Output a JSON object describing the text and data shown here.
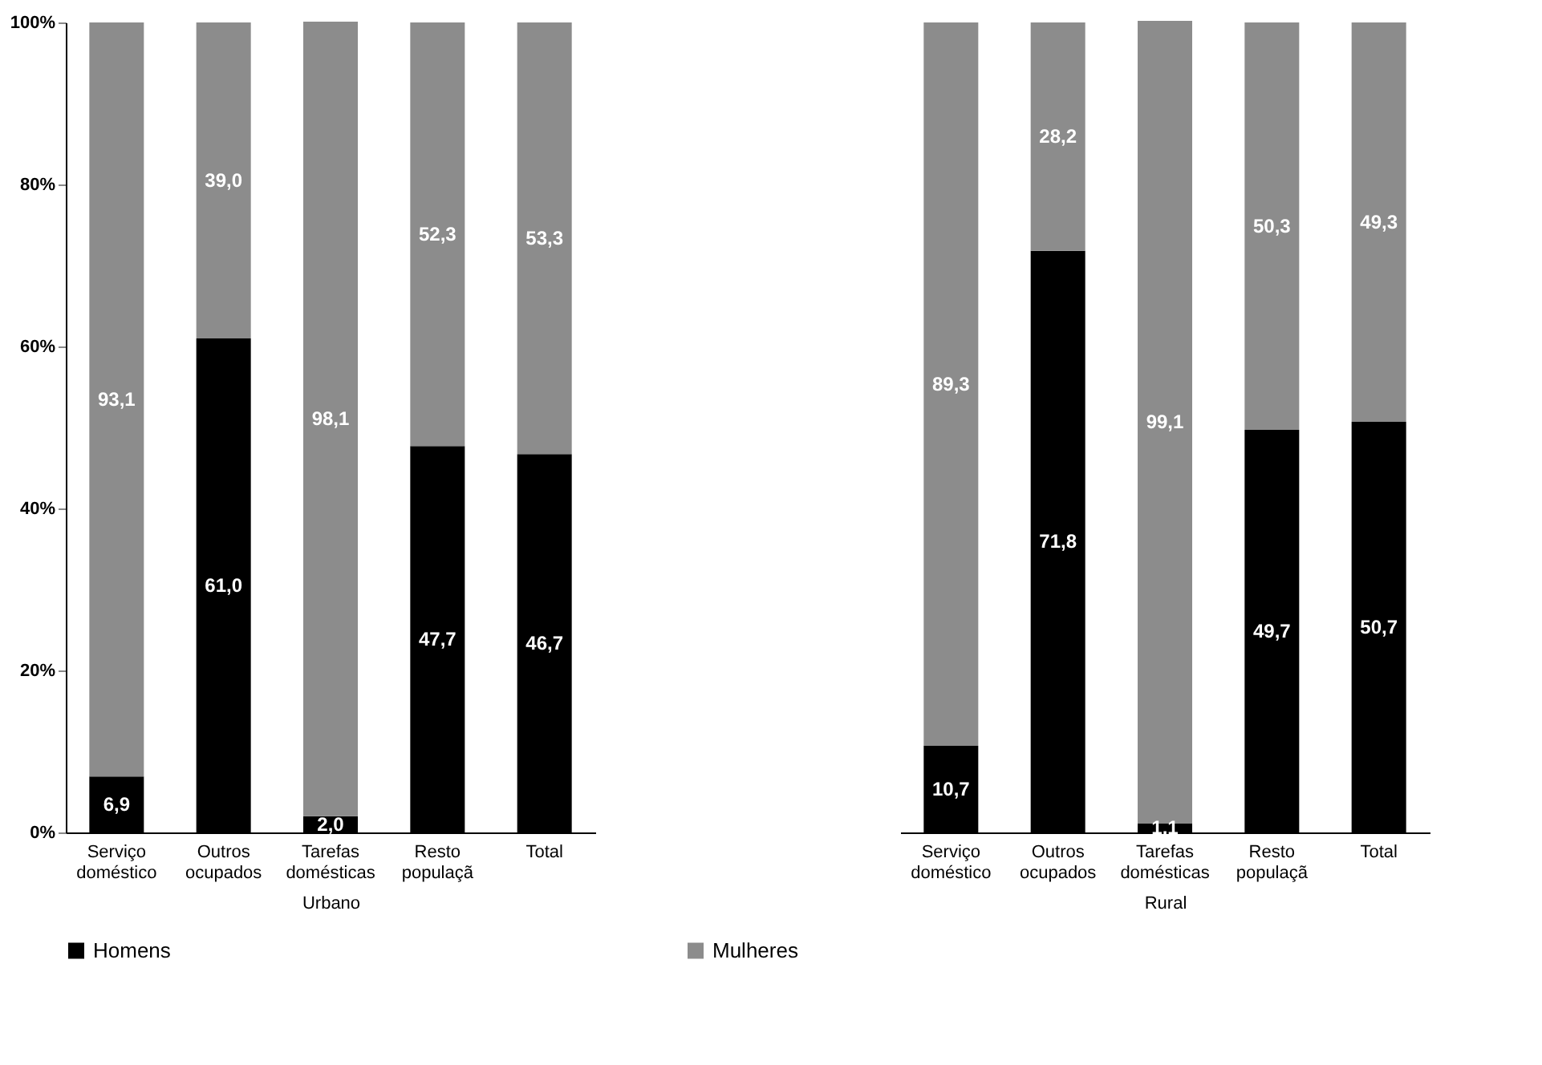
{
  "chart_data": [
    {
      "type": "bar",
      "stacked": true,
      "xlabel": "Urbano",
      "categories": [
        "Serviço doméstico",
        "Outros ocupados",
        "Tarefas domésticas",
        "Resto populaçã",
        "Total"
      ],
      "series": [
        {
          "name": "Homens",
          "color": "#000000",
          "values": [
            6.9,
            61.0,
            2.0,
            47.7,
            46.7
          ],
          "value_labels": [
            "6,9",
            "61,0",
            "2,0",
            "47,7",
            "46,7"
          ]
        },
        {
          "name": "Mulheres",
          "color": "#8c8c8c",
          "values": [
            93.1,
            39.0,
            98.1,
            52.3,
            53.3
          ],
          "value_labels": [
            "93,1",
            "39,0",
            "98,1",
            "52,3",
            "53,3"
          ]
        }
      ],
      "ylim": [
        0,
        100
      ],
      "yticks": [
        {
          "value": 0,
          "label": "0%"
        },
        {
          "value": 20,
          "label": "20%"
        },
        {
          "value": 40,
          "label": "40%"
        },
        {
          "value": 60,
          "label": "60%"
        },
        {
          "value": 80,
          "label": "80%"
        },
        {
          "value": 100,
          "label": "100%"
        }
      ],
      "legend": "bottom",
      "grid": false
    },
    {
      "type": "bar",
      "stacked": true,
      "xlabel": "Rural",
      "categories": [
        "Serviço doméstico",
        "Outros ocupados",
        "Tarefas domésticas",
        "Resto populaçã",
        "Total"
      ],
      "series": [
        {
          "name": "Homens",
          "color": "#000000",
          "values": [
            10.7,
            71.8,
            1.1,
            49.7,
            50.7
          ],
          "value_labels": [
            "10,7",
            "71,8",
            "1,1",
            "49,7",
            "50,7"
          ]
        },
        {
          "name": "Mulheres",
          "color": "#8c8c8c",
          "values": [
            89.3,
            28.2,
            99.1,
            50.3,
            49.3
          ],
          "value_labels": [
            "89,3",
            "28,2",
            "99,1",
            "50,3",
            "49,3"
          ]
        }
      ],
      "ylim": [
        0,
        100
      ],
      "tick_labels": "x",
      "legend": "bottom",
      "grid": false
    }
  ]
}
